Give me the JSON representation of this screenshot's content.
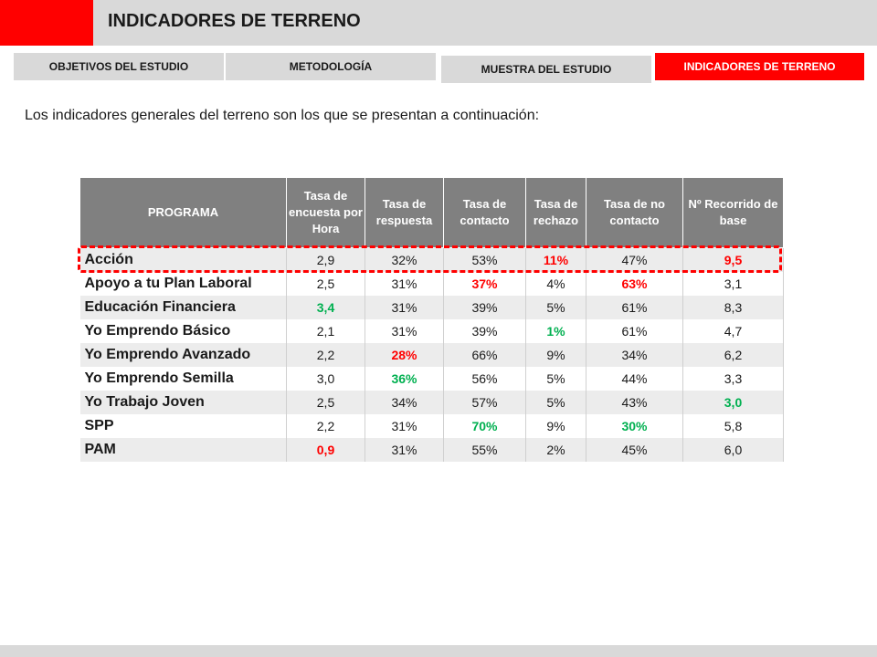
{
  "header": {
    "title": "INDICADORES DE TERRENO"
  },
  "nav": {
    "tabs": [
      {
        "label": "OBJETIVOS DEL ESTUDIO",
        "active": false
      },
      {
        "label": "METODOLOGÍA",
        "active": false
      },
      {
        "label": "MUESTRA DEL ESTUDIO",
        "active": false
      },
      {
        "label": "INDICADORES DE TERRENO",
        "active": true
      }
    ]
  },
  "intro": "Los indicadores generales del terreno son los que se presentan a continuación:",
  "colors": {
    "accent": "#ff0000",
    "header_gray": "#d9d9d9",
    "table_header": "#808080",
    "good": "#00b050",
    "bad": "#ff0000"
  },
  "table": {
    "columns": [
      "PROGRAMA",
      "Tasa de encuesta por Hora",
      "Tasa de respuesta",
      "Tasa de contacto",
      "Tasa de rechazo",
      "Tasa de no contacto",
      "Nº Recorrido de base"
    ],
    "rows": [
      {
        "programa": "Acción",
        "cells": [
          {
            "v": "2,9",
            "c": ""
          },
          {
            "v": "32%",
            "c": ""
          },
          {
            "v": "53%",
            "c": ""
          },
          {
            "v": "11%",
            "c": "red"
          },
          {
            "v": "47%",
            "c": ""
          },
          {
            "v": "9,5",
            "c": "red"
          }
        ]
      },
      {
        "programa": "Apoyo a tu Plan Laboral",
        "cells": [
          {
            "v": "2,5",
            "c": ""
          },
          {
            "v": "31%",
            "c": ""
          },
          {
            "v": "37%",
            "c": "red"
          },
          {
            "v": "4%",
            "c": ""
          },
          {
            "v": "63%",
            "c": "red"
          },
          {
            "v": "3,1",
            "c": ""
          }
        ]
      },
      {
        "programa": "Educación Financiera",
        "cells": [
          {
            "v": "3,4",
            "c": "green"
          },
          {
            "v": "31%",
            "c": ""
          },
          {
            "v": "39%",
            "c": ""
          },
          {
            "v": "5%",
            "c": ""
          },
          {
            "v": "61%",
            "c": ""
          },
          {
            "v": "8,3",
            "c": ""
          }
        ]
      },
      {
        "programa": "Yo Emprendo Básico",
        "cells": [
          {
            "v": "2,1",
            "c": ""
          },
          {
            "v": "31%",
            "c": ""
          },
          {
            "v": "39%",
            "c": ""
          },
          {
            "v": "1%",
            "c": "green"
          },
          {
            "v": "61%",
            "c": ""
          },
          {
            "v": "4,7",
            "c": ""
          }
        ]
      },
      {
        "programa": "Yo Emprendo Avanzado",
        "cells": [
          {
            "v": "2,2",
            "c": ""
          },
          {
            "v": "28%",
            "c": "red"
          },
          {
            "v": "66%",
            "c": ""
          },
          {
            "v": "9%",
            "c": ""
          },
          {
            "v": "34%",
            "c": ""
          },
          {
            "v": "6,2",
            "c": ""
          }
        ]
      },
      {
        "programa": "Yo Emprendo Semilla",
        "cells": [
          {
            "v": "3,0",
            "c": ""
          },
          {
            "v": "36%",
            "c": "green"
          },
          {
            "v": "56%",
            "c": ""
          },
          {
            "v": "5%",
            "c": ""
          },
          {
            "v": "44%",
            "c": ""
          },
          {
            "v": "3,3",
            "c": ""
          }
        ]
      },
      {
        "programa": "Yo Trabajo Joven",
        "cells": [
          {
            "v": "2,5",
            "c": ""
          },
          {
            "v": "34%",
            "c": ""
          },
          {
            "v": "57%",
            "c": ""
          },
          {
            "v": "5%",
            "c": ""
          },
          {
            "v": "43%",
            "c": ""
          },
          {
            "v": "3,0",
            "c": "green"
          }
        ]
      },
      {
        "programa": "SPP",
        "cells": [
          {
            "v": "2,2",
            "c": ""
          },
          {
            "v": "31%",
            "c": ""
          },
          {
            "v": "70%",
            "c": "green"
          },
          {
            "v": "9%",
            "c": ""
          },
          {
            "v": "30%",
            "c": "green"
          },
          {
            "v": "5,8",
            "c": ""
          }
        ]
      },
      {
        "programa": "PAM",
        "cells": [
          {
            "v": "0,9",
            "c": "red"
          },
          {
            "v": "31%",
            "c": ""
          },
          {
            "v": "55%",
            "c": ""
          },
          {
            "v": "2%",
            "c": ""
          },
          {
            "v": "45%",
            "c": ""
          },
          {
            "v": "6,0",
            "c": ""
          }
        ]
      }
    ]
  }
}
